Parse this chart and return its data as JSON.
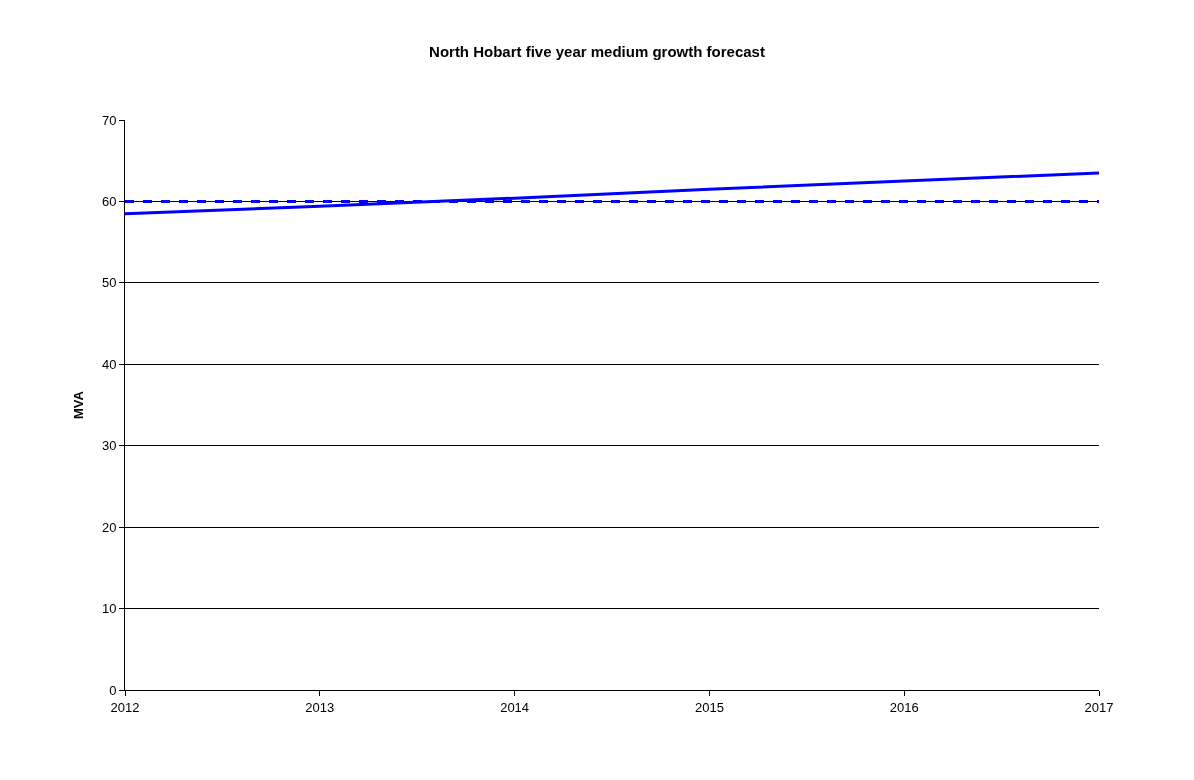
{
  "chart_data": {
    "type": "line",
    "title": "North Hobart five year medium growth forecast",
    "ylabel": "MVA",
    "x": [
      2012,
      2013,
      2014,
      2015,
      2016,
      2017
    ],
    "series": [
      {
        "color": "#0000ff",
        "values": [
          58.5,
          59.4,
          60.4,
          61.5,
          62.5,
          63.5
        ],
        "line_style": "solid"
      },
      {
        "color": "#0000ff",
        "values": [
          60,
          60,
          60,
          60,
          60,
          60
        ],
        "line_style": "dashed"
      }
    ],
    "xlim": [
      2012,
      2017
    ],
    "xticks": [
      2012,
      2013,
      2014,
      2015,
      2016,
      2017
    ],
    "ylim": [
      0,
      70
    ],
    "yticks": [
      0,
      10,
      20,
      30,
      40,
      50,
      60,
      70
    ],
    "grid": "y",
    "marker": "none"
  }
}
